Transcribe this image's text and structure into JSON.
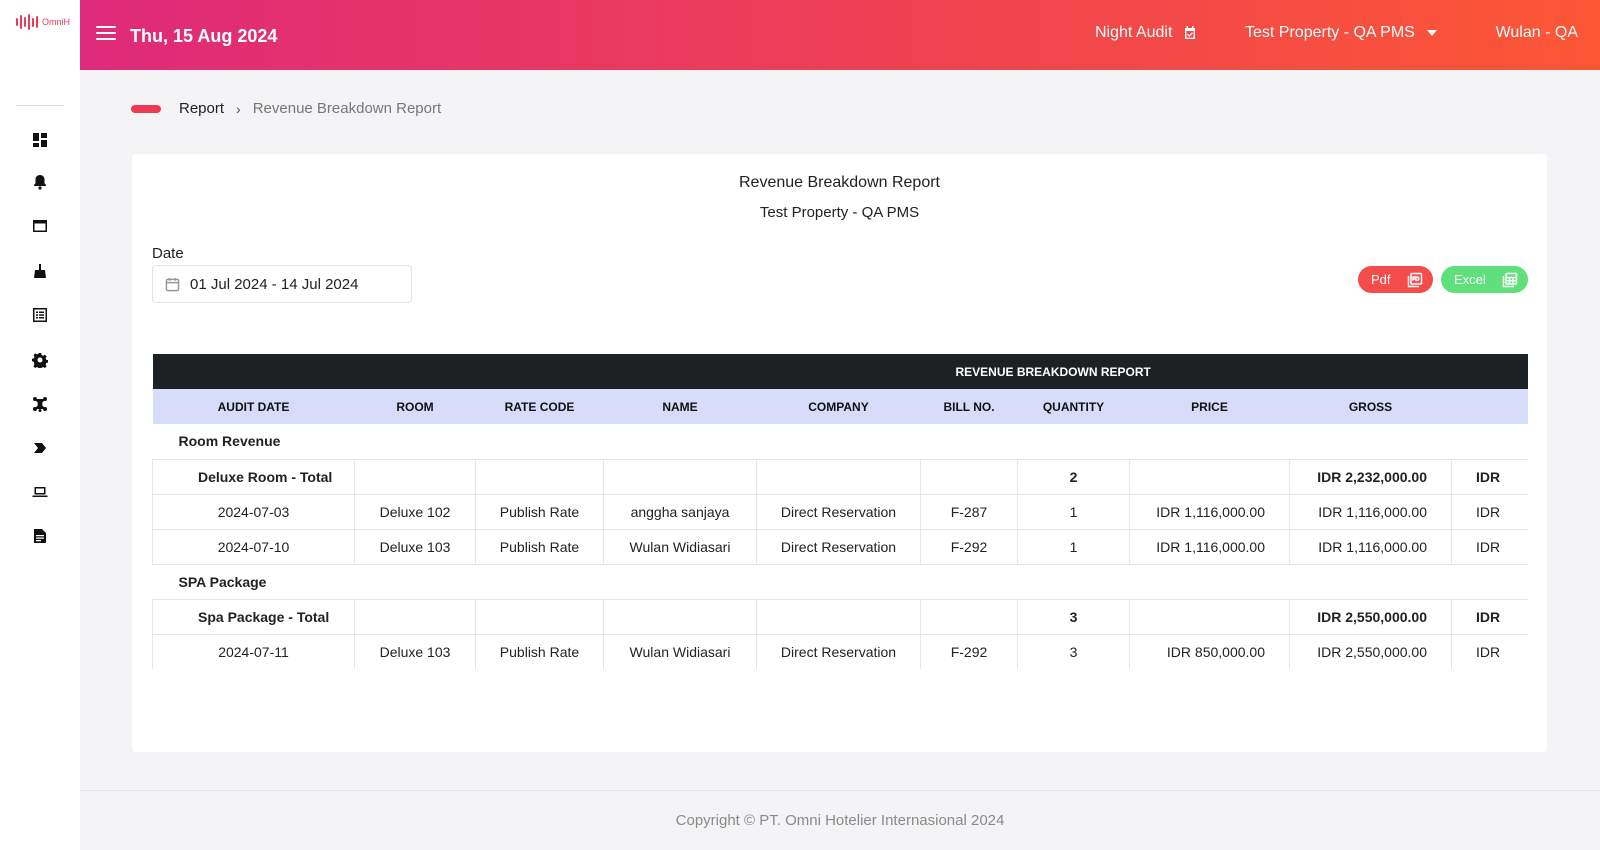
{
  "app": {
    "logo_text": "OmniH"
  },
  "header": {
    "date": "Thu, 15 Aug 2024",
    "night_audit": "Night Audit",
    "property": "Test Property - QA PMS",
    "user": "Wulan - QA"
  },
  "sidebar": {
    "icons": [
      "dashboard-icon",
      "notification-bell-icon",
      "window-icon",
      "housekeeping-icon",
      "list-icon",
      "gear-icon",
      "network-icon",
      "tag-icon",
      "laptop-icon",
      "report-document-icon"
    ]
  },
  "breadcrumb": {
    "parent": "Report",
    "current": "Revenue Breakdown Report"
  },
  "report": {
    "title": "Revenue Breakdown Report",
    "property": "Test Property - QA PMS",
    "date_label": "Date",
    "date_range": "01 Jul 2024 - 14 Jul 2024",
    "pdf_label": "Pdf",
    "excel_label": "Excel"
  },
  "table": {
    "band_title": "REVENUE BREAKDOWN REPORT",
    "headers": [
      "AUDIT DATE",
      "ROOM",
      "RATE CODE",
      "NAME",
      "COMPANY",
      "BILL NO.",
      "QUANTITY",
      "PRICE",
      "GROSS",
      ""
    ],
    "groups": [
      {
        "name": "Room Revenue",
        "subtotal": {
          "label": "Deluxe Room - Total",
          "quantity": "2",
          "gross": "IDR 2,232,000.00",
          "extra": "IDR"
        },
        "rows": [
          {
            "date": "2024-07-03",
            "room": "Deluxe 102",
            "rate": "Publish Rate",
            "name": "anggha sanjaya",
            "company": "Direct Reservation",
            "bill": "F-287",
            "qty": "1",
            "price": "IDR 1,116,000.00",
            "gross": "IDR 1,116,000.00",
            "extra": "IDR"
          },
          {
            "date": "2024-07-10",
            "room": "Deluxe 103",
            "rate": "Publish Rate",
            "name": "Wulan Widiasari",
            "company": "Direct Reservation",
            "bill": "F-292",
            "qty": "1",
            "price": "IDR 1,116,000.00",
            "gross": "IDR 1,116,000.00",
            "extra": "IDR"
          }
        ]
      },
      {
        "name": "SPA Package",
        "subtotal": {
          "label": "Spa Package - Total",
          "quantity": "3",
          "gross": "IDR 2,550,000.00",
          "extra": "IDR"
        },
        "rows": [
          {
            "date": "2024-07-11",
            "room": "Deluxe 103",
            "rate": "Publish Rate",
            "name": "Wulan Widiasari",
            "company": "Direct Reservation",
            "bill": "F-292",
            "qty": "3",
            "price": "IDR 850,000.00",
            "gross": "IDR 2,550,000.00",
            "extra": "IDR"
          }
        ]
      }
    ]
  },
  "footer": {
    "copyright": "Copyright © PT. Omni Hotelier Internasional 2024"
  },
  "colors": {
    "accent": "#ee3a52",
    "header_start": "#de2a7a",
    "header_end": "#fb5735",
    "pdf": "#f44b4b",
    "excel": "#5fe07a",
    "table_band": "#1e2124",
    "table_header": "#d6dcfa"
  }
}
